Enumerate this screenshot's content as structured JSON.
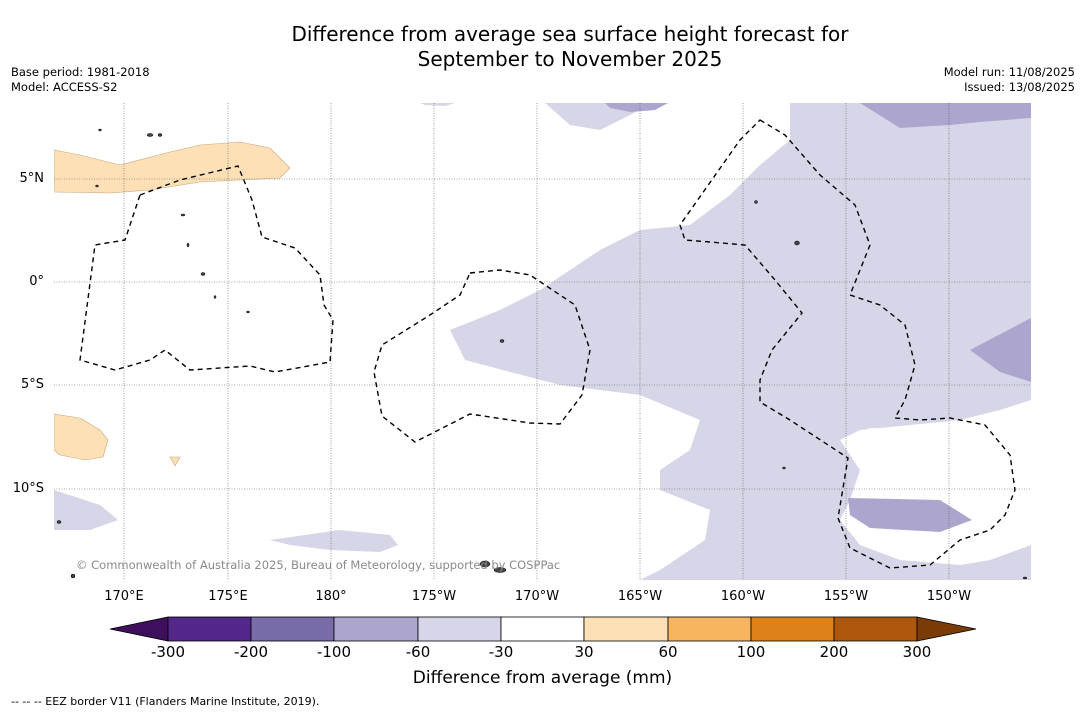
{
  "title_line1": "Difference from average sea surface height forecast for",
  "title_line2": "September to November 2025",
  "meta_left": {
    "base_period": "Base period: 1981-2018",
    "model": "Model: ACCESS-S2"
  },
  "meta_right": {
    "model_run": "Model run: 11/08/2025",
    "issued": "Issued: 13/08/2025"
  },
  "lat_labels": [
    "5°N",
    "0°",
    "5°S",
    "10°S"
  ],
  "lon_labels": [
    "170°E",
    "175°E",
    "180°",
    "175°W",
    "170°W",
    "165°W",
    "160°W",
    "155°W",
    "150°W"
  ],
  "copyright": "© Commonwealth of Australia 2025, Bureau of Meteorology, supported by COSPPac",
  "colorbar": {
    "title": "Difference from average (mm)",
    "ticks": [
      "-300",
      "-200",
      "-100",
      "-60",
      "-30",
      "30",
      "60",
      "100",
      "200",
      "300"
    ],
    "colors": [
      "#3d0f5c",
      "#54288a",
      "#7a6ca8",
      "#aca5ce",
      "#d6d6e8",
      "#ffffff",
      "#fde0b6",
      "#f8b55f",
      "#de8118",
      "#ad570d",
      "#7a3b06"
    ]
  },
  "footnote": "-- -- -- EEZ border V11 (Flanders Marine Institute, 2019)."
}
